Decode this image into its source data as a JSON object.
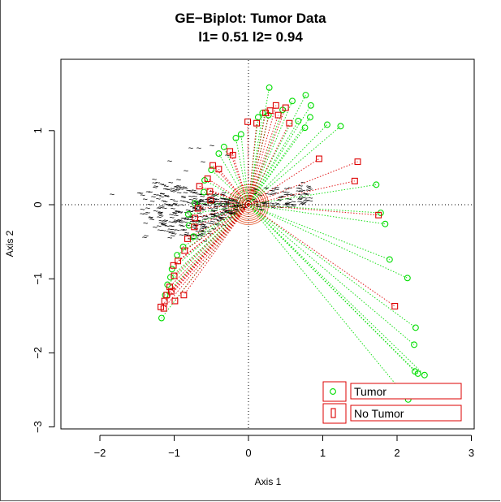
{
  "chart_data": {
    "type": "scatter",
    "title_line1": "GE−Biplot: Tumor Data",
    "title_line2": "l1= 0.51 l2= 0.94",
    "xlabel": "Axis 1",
    "ylabel": "Axis 2",
    "xlim": [
      -2.5,
      3
    ],
    "ylim": [
      -3,
      1.9
    ],
    "x_ticks": [
      -2,
      -1,
      0,
      1,
      2,
      3
    ],
    "y_ticks": [
      -3,
      -2,
      -1,
      0,
      1
    ],
    "x_tick_labels": [
      "−2",
      "−1",
      "0",
      "1",
      "2",
      "3"
    ],
    "y_tick_labels": [
      "−3",
      "−2",
      "−1",
      "0",
      "1"
    ],
    "reference_lines": {
      "x": 0,
      "y": 0,
      "style": "dotted"
    },
    "gene_marker": "~",
    "legend": {
      "placement": "bottom-right",
      "entries": [
        {
          "label": "Tumor",
          "symbol": "circle",
          "color": "#00dd00"
        },
        {
          "label": "No Tumor",
          "symbol": "square",
          "color": "#dd0000"
        }
      ]
    },
    "series": [
      {
        "name": "Tumor",
        "marker": "circle",
        "color": "#00dd00",
        "points": [
          [
            0.28,
            1.58
          ],
          [
            0.77,
            1.48
          ],
          [
            0.84,
            1.34
          ],
          [
            0.59,
            1.4
          ],
          [
            0.46,
            1.28
          ],
          [
            0.83,
            1.18
          ],
          [
            0.67,
            1.13
          ],
          [
            1.06,
            1.08
          ],
          [
            1.24,
            1.06
          ],
          [
            0.76,
            1.04
          ],
          [
            0.27,
            1.21
          ],
          [
            0.19,
            1.24
          ],
          [
            0.13,
            1.18
          ],
          [
            -0.1,
            0.95
          ],
          [
            -0.17,
            0.9
          ],
          [
            -0.33,
            0.78
          ],
          [
            -0.4,
            0.69
          ],
          [
            -0.5,
            0.47
          ],
          [
            -0.59,
            0.33
          ],
          [
            -0.6,
            0.17
          ],
          [
            -0.72,
            0.02
          ],
          [
            -0.81,
            -0.13
          ],
          [
            -0.8,
            -0.28
          ],
          [
            -0.74,
            -0.43
          ],
          [
            -0.88,
            -0.57
          ],
          [
            -0.96,
            -0.68
          ],
          [
            -1.03,
            -0.87
          ],
          [
            -1.05,
            -0.98
          ],
          [
            -1.09,
            -1.08
          ],
          [
            -1.12,
            -1.22
          ],
          [
            -1.17,
            -1.53
          ],
          [
            1.72,
            0.27
          ],
          [
            1.78,
            -0.11
          ],
          [
            1.84,
            -0.26
          ],
          [
            1.9,
            -0.74
          ],
          [
            2.14,
            -0.99
          ],
          [
            2.25,
            -1.66
          ],
          [
            2.23,
            -1.89
          ],
          [
            2.24,
            -2.25
          ],
          [
            2.28,
            -2.28
          ],
          [
            2.37,
            -2.3
          ],
          [
            2.15,
            -2.63
          ]
        ]
      },
      {
        "name": "No Tumor",
        "marker": "square",
        "color": "#dd0000",
        "points": [
          [
            0.37,
            1.34
          ],
          [
            0.5,
            1.31
          ],
          [
            0.29,
            1.27
          ],
          [
            0.23,
            1.24
          ],
          [
            0.4,
            1.21
          ],
          [
            0.55,
            1.1
          ],
          [
            -0.01,
            1.12
          ],
          [
            0.11,
            1.1
          ],
          [
            -0.25,
            0.72
          ],
          [
            -0.21,
            0.67
          ],
          [
            -0.48,
            0.53
          ],
          [
            -0.4,
            0.48
          ],
          [
            -0.55,
            0.35
          ],
          [
            -0.66,
            0.25
          ],
          [
            -0.52,
            0.18
          ],
          [
            -0.51,
            0.06
          ],
          [
            -0.68,
            -0.05
          ],
          [
            -0.72,
            -0.18
          ],
          [
            -0.73,
            -0.3
          ],
          [
            -0.82,
            -0.46
          ],
          [
            -0.86,
            -0.62
          ],
          [
            -0.95,
            -0.76
          ],
          [
            -1.01,
            -0.82
          ],
          [
            -1.0,
            -0.96
          ],
          [
            -1.06,
            -1.11
          ],
          [
            -1.04,
            -1.17
          ],
          [
            -1.1,
            -1.22
          ],
          [
            -0.87,
            -1.22
          ],
          [
            -0.99,
            -1.3
          ],
          [
            -1.13,
            -1.3
          ],
          [
            -1.18,
            -1.38
          ],
          [
            -1.14,
            -1.4
          ],
          [
            0.95,
            0.62
          ],
          [
            1.47,
            0.58
          ],
          [
            1.43,
            0.32
          ],
          [
            1.75,
            -0.14
          ],
          [
            1.97,
            -1.37
          ]
        ]
      }
    ]
  }
}
